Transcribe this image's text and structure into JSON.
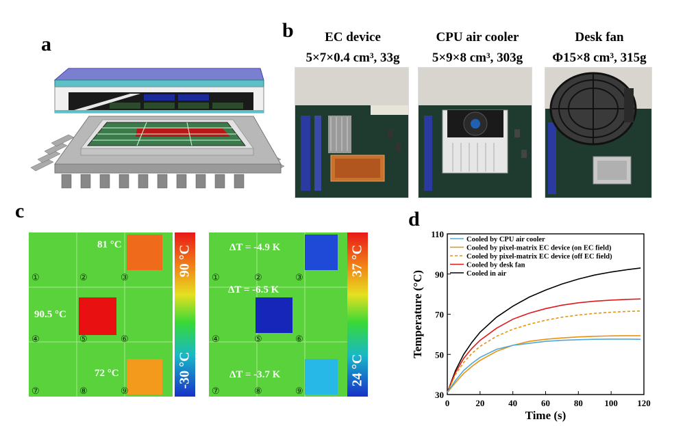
{
  "panel_labels": {
    "a": "a",
    "b": "b",
    "c": "c",
    "d": "d"
  },
  "photos": [
    {
      "title_line1": "EC device",
      "title_line2": "5×7×0.4 cm³, 33g"
    },
    {
      "title_line1": "CPU air cooler",
      "title_line2": "5×9×8 cm³, 303g"
    },
    {
      "title_line1": "Desk fan",
      "title_line2": "Φ15×8 cm³, 315g"
    }
  ],
  "thermal_left": {
    "labels": {
      "hot3": "81 °C",
      "hot5": "90.5 °C",
      "hot9": "72 °C"
    },
    "colorbar_top": "90 °C",
    "colorbar_bottom": "-30 °C"
  },
  "thermal_right": {
    "labels": {
      "d3": "ΔT = -4.9 K",
      "d5": "ΔT = -6.5 K",
      "d9": "ΔT = -3.7 K"
    },
    "colorbar_top": "37 °C",
    "colorbar_bottom": "24 °C"
  },
  "cell_numbers": [
    "①",
    "②",
    "③",
    "④",
    "⑤",
    "⑥",
    "⑦",
    "⑧",
    "⑨"
  ],
  "colors": {
    "cpu": "#4fa8d8",
    "ec_on": "#e8920c",
    "ec_off": "#e8920c",
    "fan": "#e01818",
    "air": "#000000"
  },
  "chart_data": {
    "type": "line",
    "xlabel": "Time (s)",
    "ylabel": "Temperature (°C)",
    "xlim": [
      0,
      120
    ],
    "ylim": [
      30,
      110
    ],
    "xticks": [
      0,
      20,
      40,
      60,
      80,
      100,
      120
    ],
    "yticks": [
      30,
      50,
      70,
      90,
      110
    ],
    "x": [
      0,
      5,
      10,
      15,
      20,
      30,
      40,
      50,
      60,
      70,
      80,
      90,
      100,
      110,
      118
    ],
    "series": [
      {
        "name": "Cooled by CPU air cooler",
        "style": "solid",
        "values": [
          31,
          37,
          42,
          45.5,
          48.5,
          52.5,
          54.5,
          55.5,
          56.5,
          57,
          57.3,
          57.5,
          57.6,
          57.6,
          57.5
        ]
      },
      {
        "name": "Cooled by pixel-matrix EC device (on EC field)",
        "style": "solid",
        "values": [
          31,
          36,
          40.5,
          44,
          47,
          51.5,
          54.5,
          56.5,
          57.5,
          58.2,
          58.7,
          59,
          59.2,
          59.3,
          59.3
        ]
      },
      {
        "name": "Cooled by pixel-matrix EC device (off EC field)",
        "style": "dashed",
        "values": [
          31,
          40,
          46,
          50.5,
          54,
          59,
          62.5,
          65,
          67,
          68.5,
          69.6,
          70.4,
          71,
          71.4,
          71.6
        ]
      },
      {
        "name": "Cooled by desk fan",
        "style": "solid",
        "values": [
          31,
          41,
          48,
          53,
          57,
          63,
          67.5,
          70.5,
          72.8,
          74.5,
          75.7,
          76.5,
          77,
          77.4,
          77.6
        ]
      },
      {
        "name": "Cooled in air",
        "style": "solid",
        "values": [
          31,
          42,
          50,
          56,
          61,
          68.5,
          74,
          78.5,
          82,
          85,
          87.5,
          89.5,
          91,
          92.2,
          93
        ]
      }
    ]
  }
}
